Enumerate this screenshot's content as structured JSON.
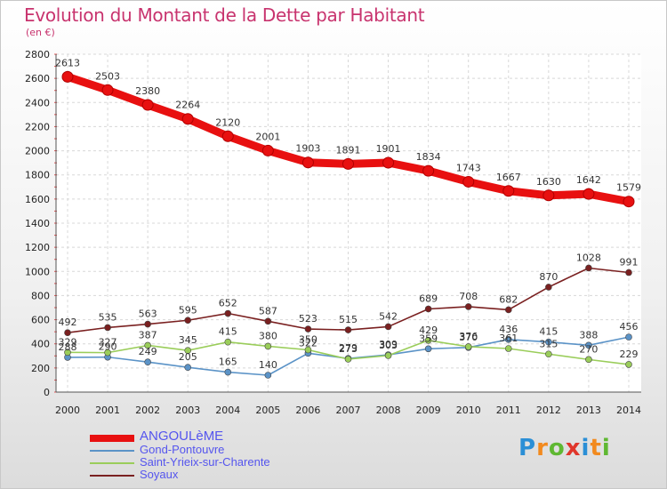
{
  "title": "Evolution du Montant de la Dette par Habitant",
  "unit_label": "(en €)",
  "logo": {
    "text": "Proxiti",
    "colors": [
      "#2b8fd6",
      "#f28a1e",
      "#5fb832",
      "#e0362b",
      "#2b8fd6",
      "#f28a1e",
      "#5fb832"
    ]
  },
  "chart_data": {
    "type": "line",
    "title": "Evolution du Montant de la Dette par Habitant",
    "ylabel": "(en €)",
    "xlabel": "",
    "x": [
      "2000",
      "2001",
      "2002",
      "2003",
      "2004",
      "2005",
      "2006",
      "2007",
      "2008",
      "2009",
      "2010",
      "2011",
      "2012",
      "2013",
      "2014"
    ],
    "ylim": [
      0,
      2800
    ],
    "yticks": [
      0,
      200,
      400,
      600,
      800,
      1000,
      1200,
      1400,
      1600,
      1800,
      2000,
      2200,
      2400,
      2600,
      2800
    ],
    "grid": true,
    "legend_position": "bottom-left",
    "series": [
      {
        "name": "ANGOULèME",
        "color": "#e81010",
        "values": [
          2613,
          2503,
          2380,
          2264,
          2120,
          2001,
          1903,
          1891,
          1901,
          1834,
          1743,
          1667,
          1630,
          1642,
          1579
        ]
      },
      {
        "name": "Gond-Pontouvre",
        "color": "#5b93c7",
        "values": [
          288,
          290,
          249,
          205,
          165,
          140,
          322,
          279,
          309,
          359,
          370,
          436,
          415,
          388,
          456
        ]
      },
      {
        "name": "Saint-Yrieix-sur-Charente",
        "color": "#9acd5a",
        "values": [
          329,
          327,
          387,
          345,
          415,
          380,
          350,
          273,
          303,
          429,
          376,
          361,
          315,
          270,
          229
        ]
      },
      {
        "name": "Soyaux",
        "color": "#7a2020",
        "values": [
          492,
          535,
          563,
          595,
          652,
          587,
          523,
          515,
          542,
          689,
          708,
          682,
          870,
          1028,
          991
        ]
      }
    ]
  }
}
